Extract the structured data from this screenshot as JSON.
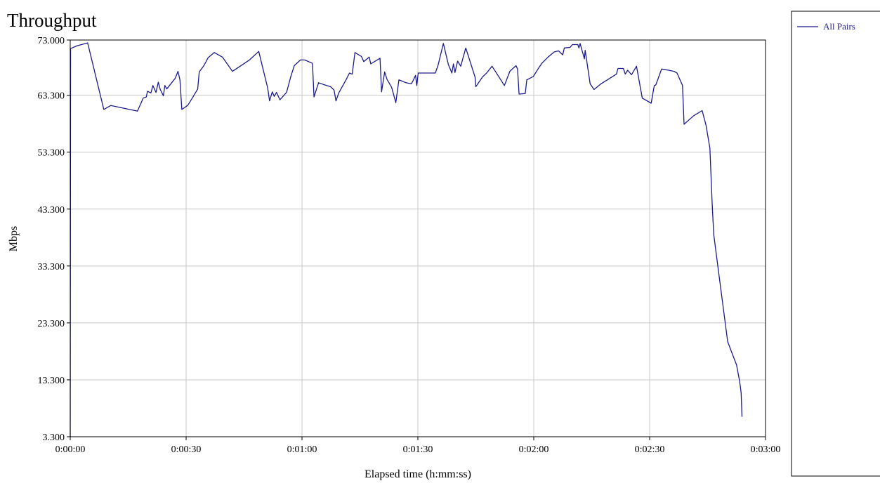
{
  "chart_data": {
    "type": "line",
    "title": "Throughput",
    "xlabel": "Elapsed time (h:mm:ss)",
    "ylabel": "Mbps",
    "xlim": [
      0,
      180
    ],
    "ylim": [
      3.3,
      73.0
    ],
    "x_ticks": [
      {
        "value": 0,
        "label": "0:00:00"
      },
      {
        "value": 30,
        "label": "0:00:30"
      },
      {
        "value": 60,
        "label": "0:01:00"
      },
      {
        "value": 90,
        "label": "0:01:30"
      },
      {
        "value": 120,
        "label": "0:02:00"
      },
      {
        "value": 150,
        "label": "0:02:30"
      },
      {
        "value": 180,
        "label": "0:03:00"
      }
    ],
    "y_ticks": [
      {
        "value": 3.3,
        "label": "3.300"
      },
      {
        "value": 13.3,
        "label": "13.300"
      },
      {
        "value": 23.3,
        "label": "23.300"
      },
      {
        "value": 33.3,
        "label": "33.300"
      },
      {
        "value": 43.3,
        "label": "43.300"
      },
      {
        "value": 53.3,
        "label": "53.300"
      },
      {
        "value": 63.3,
        "label": "63.300"
      },
      {
        "value": 73.0,
        "label": "73.000"
      }
    ],
    "grid": true,
    "legend_position": "right",
    "series": [
      {
        "name": "All Pairs",
        "color": "#1a1a8c",
        "points": [
          [
            0.0,
            3.3
          ],
          [
            0.1,
            71.5
          ],
          [
            1.8,
            72.0
          ],
          [
            4.5,
            72.5
          ],
          [
            8.7,
            60.8
          ],
          [
            10.5,
            61.5
          ],
          [
            17.4,
            60.5
          ],
          [
            18.9,
            62.8
          ],
          [
            19.7,
            63.0
          ],
          [
            20.0,
            64.0
          ],
          [
            20.9,
            63.7
          ],
          [
            21.4,
            65.0
          ],
          [
            22.2,
            63.8
          ],
          [
            22.8,
            65.6
          ],
          [
            23.3,
            64.3
          ],
          [
            24.1,
            63.2
          ],
          [
            24.5,
            65.0
          ],
          [
            25.0,
            64.4
          ],
          [
            27.2,
            66.3
          ],
          [
            27.9,
            67.5
          ],
          [
            28.4,
            66.0
          ],
          [
            28.9,
            60.8
          ],
          [
            30.4,
            61.5
          ],
          [
            31.6,
            62.8
          ],
          [
            33.0,
            64.4
          ],
          [
            33.4,
            67.4
          ],
          [
            34.6,
            68.5
          ],
          [
            35.7,
            69.9
          ],
          [
            37.3,
            70.8
          ],
          [
            39.4,
            70.0
          ],
          [
            42.0,
            67.5
          ],
          [
            46.4,
            69.5
          ],
          [
            48.8,
            71.0
          ],
          [
            51.1,
            64.6
          ],
          [
            51.6,
            62.3
          ],
          [
            52.3,
            63.9
          ],
          [
            52.8,
            63.1
          ],
          [
            53.4,
            63.8
          ],
          [
            54.3,
            62.5
          ],
          [
            56.0,
            63.8
          ],
          [
            57.1,
            66.6
          ],
          [
            58.0,
            68.5
          ],
          [
            59.6,
            69.5
          ],
          [
            60.7,
            69.5
          ],
          [
            62.7,
            68.9
          ],
          [
            63.1,
            63.0
          ],
          [
            64.3,
            65.5
          ],
          [
            65.5,
            65.2
          ],
          [
            67.4,
            64.8
          ],
          [
            68.3,
            64.2
          ],
          [
            68.8,
            62.3
          ],
          [
            69.5,
            63.7
          ],
          [
            71.4,
            66.0
          ],
          [
            72.3,
            67.2
          ],
          [
            73.0,
            67.0
          ],
          [
            73.7,
            70.8
          ],
          [
            75.4,
            70.1
          ],
          [
            76.0,
            69.2
          ],
          [
            77.4,
            70.0
          ],
          [
            77.8,
            68.8
          ],
          [
            80.2,
            69.8
          ],
          [
            80.6,
            63.9
          ],
          [
            81.4,
            67.4
          ],
          [
            82.0,
            66.1
          ],
          [
            83.2,
            64.7
          ],
          [
            84.3,
            62.0
          ],
          [
            85.1,
            66.0
          ],
          [
            86.9,
            65.5
          ],
          [
            88.3,
            65.3
          ],
          [
            88.7,
            65.8
          ],
          [
            89.4,
            66.8
          ],
          [
            89.7,
            65.0
          ],
          [
            90.1,
            67.2
          ],
          [
            91.3,
            67.2
          ],
          [
            92.0,
            67.2
          ],
          [
            93.3,
            67.2
          ],
          [
            94.5,
            67.2
          ],
          [
            95.2,
            68.5
          ],
          [
            96.6,
            72.4
          ],
          [
            97.9,
            68.7
          ],
          [
            98.8,
            67.2
          ],
          [
            99.2,
            68.8
          ],
          [
            99.6,
            67.3
          ],
          [
            100.3,
            69.3
          ],
          [
            101.1,
            68.4
          ],
          [
            102.4,
            71.6
          ],
          [
            104.8,
            66.5
          ],
          [
            105.0,
            64.8
          ],
          [
            106.7,
            66.5
          ],
          [
            107.8,
            67.2
          ],
          [
            109.2,
            68.4
          ],
          [
            111.0,
            66.5
          ],
          [
            112.4,
            65.0
          ],
          [
            113.8,
            67.5
          ],
          [
            115.4,
            68.5
          ],
          [
            115.8,
            67.9
          ],
          [
            116.2,
            63.5
          ],
          [
            117.8,
            63.6
          ],
          [
            118.2,
            66.0
          ],
          [
            119.9,
            66.6
          ],
          [
            121.1,
            67.9
          ],
          [
            122.1,
            68.9
          ],
          [
            123.7,
            70.0
          ],
          [
            125.3,
            70.9
          ],
          [
            126.4,
            71.1
          ],
          [
            127.5,
            70.4
          ],
          [
            127.9,
            71.6
          ],
          [
            129.4,
            71.7
          ],
          [
            130.0,
            72.2
          ],
          [
            131.4,
            72.2
          ],
          [
            131.7,
            71.6
          ],
          [
            132.0,
            72.4
          ],
          [
            133.1,
            69.7
          ],
          [
            133.3,
            71.2
          ],
          [
            134.6,
            65.3
          ],
          [
            135.6,
            64.3
          ],
          [
            137.4,
            65.3
          ],
          [
            141.4,
            67.0
          ],
          [
            141.8,
            68.0
          ],
          [
            143.2,
            68.0
          ],
          [
            143.7,
            67.0
          ],
          [
            144.3,
            67.7
          ],
          [
            145.3,
            66.9
          ],
          [
            146.6,
            68.4
          ],
          [
            148.1,
            62.8
          ],
          [
            150.4,
            61.9
          ],
          [
            151.2,
            65.0
          ],
          [
            151.6,
            65.1
          ],
          [
            153.1,
            67.9
          ],
          [
            154.9,
            67.7
          ],
          [
            156.3,
            67.5
          ],
          [
            157.1,
            67.2
          ],
          [
            158.5,
            65.0
          ],
          [
            158.9,
            58.2
          ],
          [
            161.4,
            59.7
          ],
          [
            163.6,
            60.6
          ],
          [
            164.6,
            58.0
          ],
          [
            165.6,
            54.0
          ],
          [
            166.2,
            44.0
          ],
          [
            166.6,
            38.8
          ],
          [
            167.8,
            32.5
          ],
          [
            170.2,
            20.0
          ],
          [
            172.5,
            15.9
          ],
          [
            173.3,
            13.0
          ],
          [
            173.7,
            11.0
          ],
          [
            173.9,
            6.8
          ]
        ]
      }
    ]
  }
}
